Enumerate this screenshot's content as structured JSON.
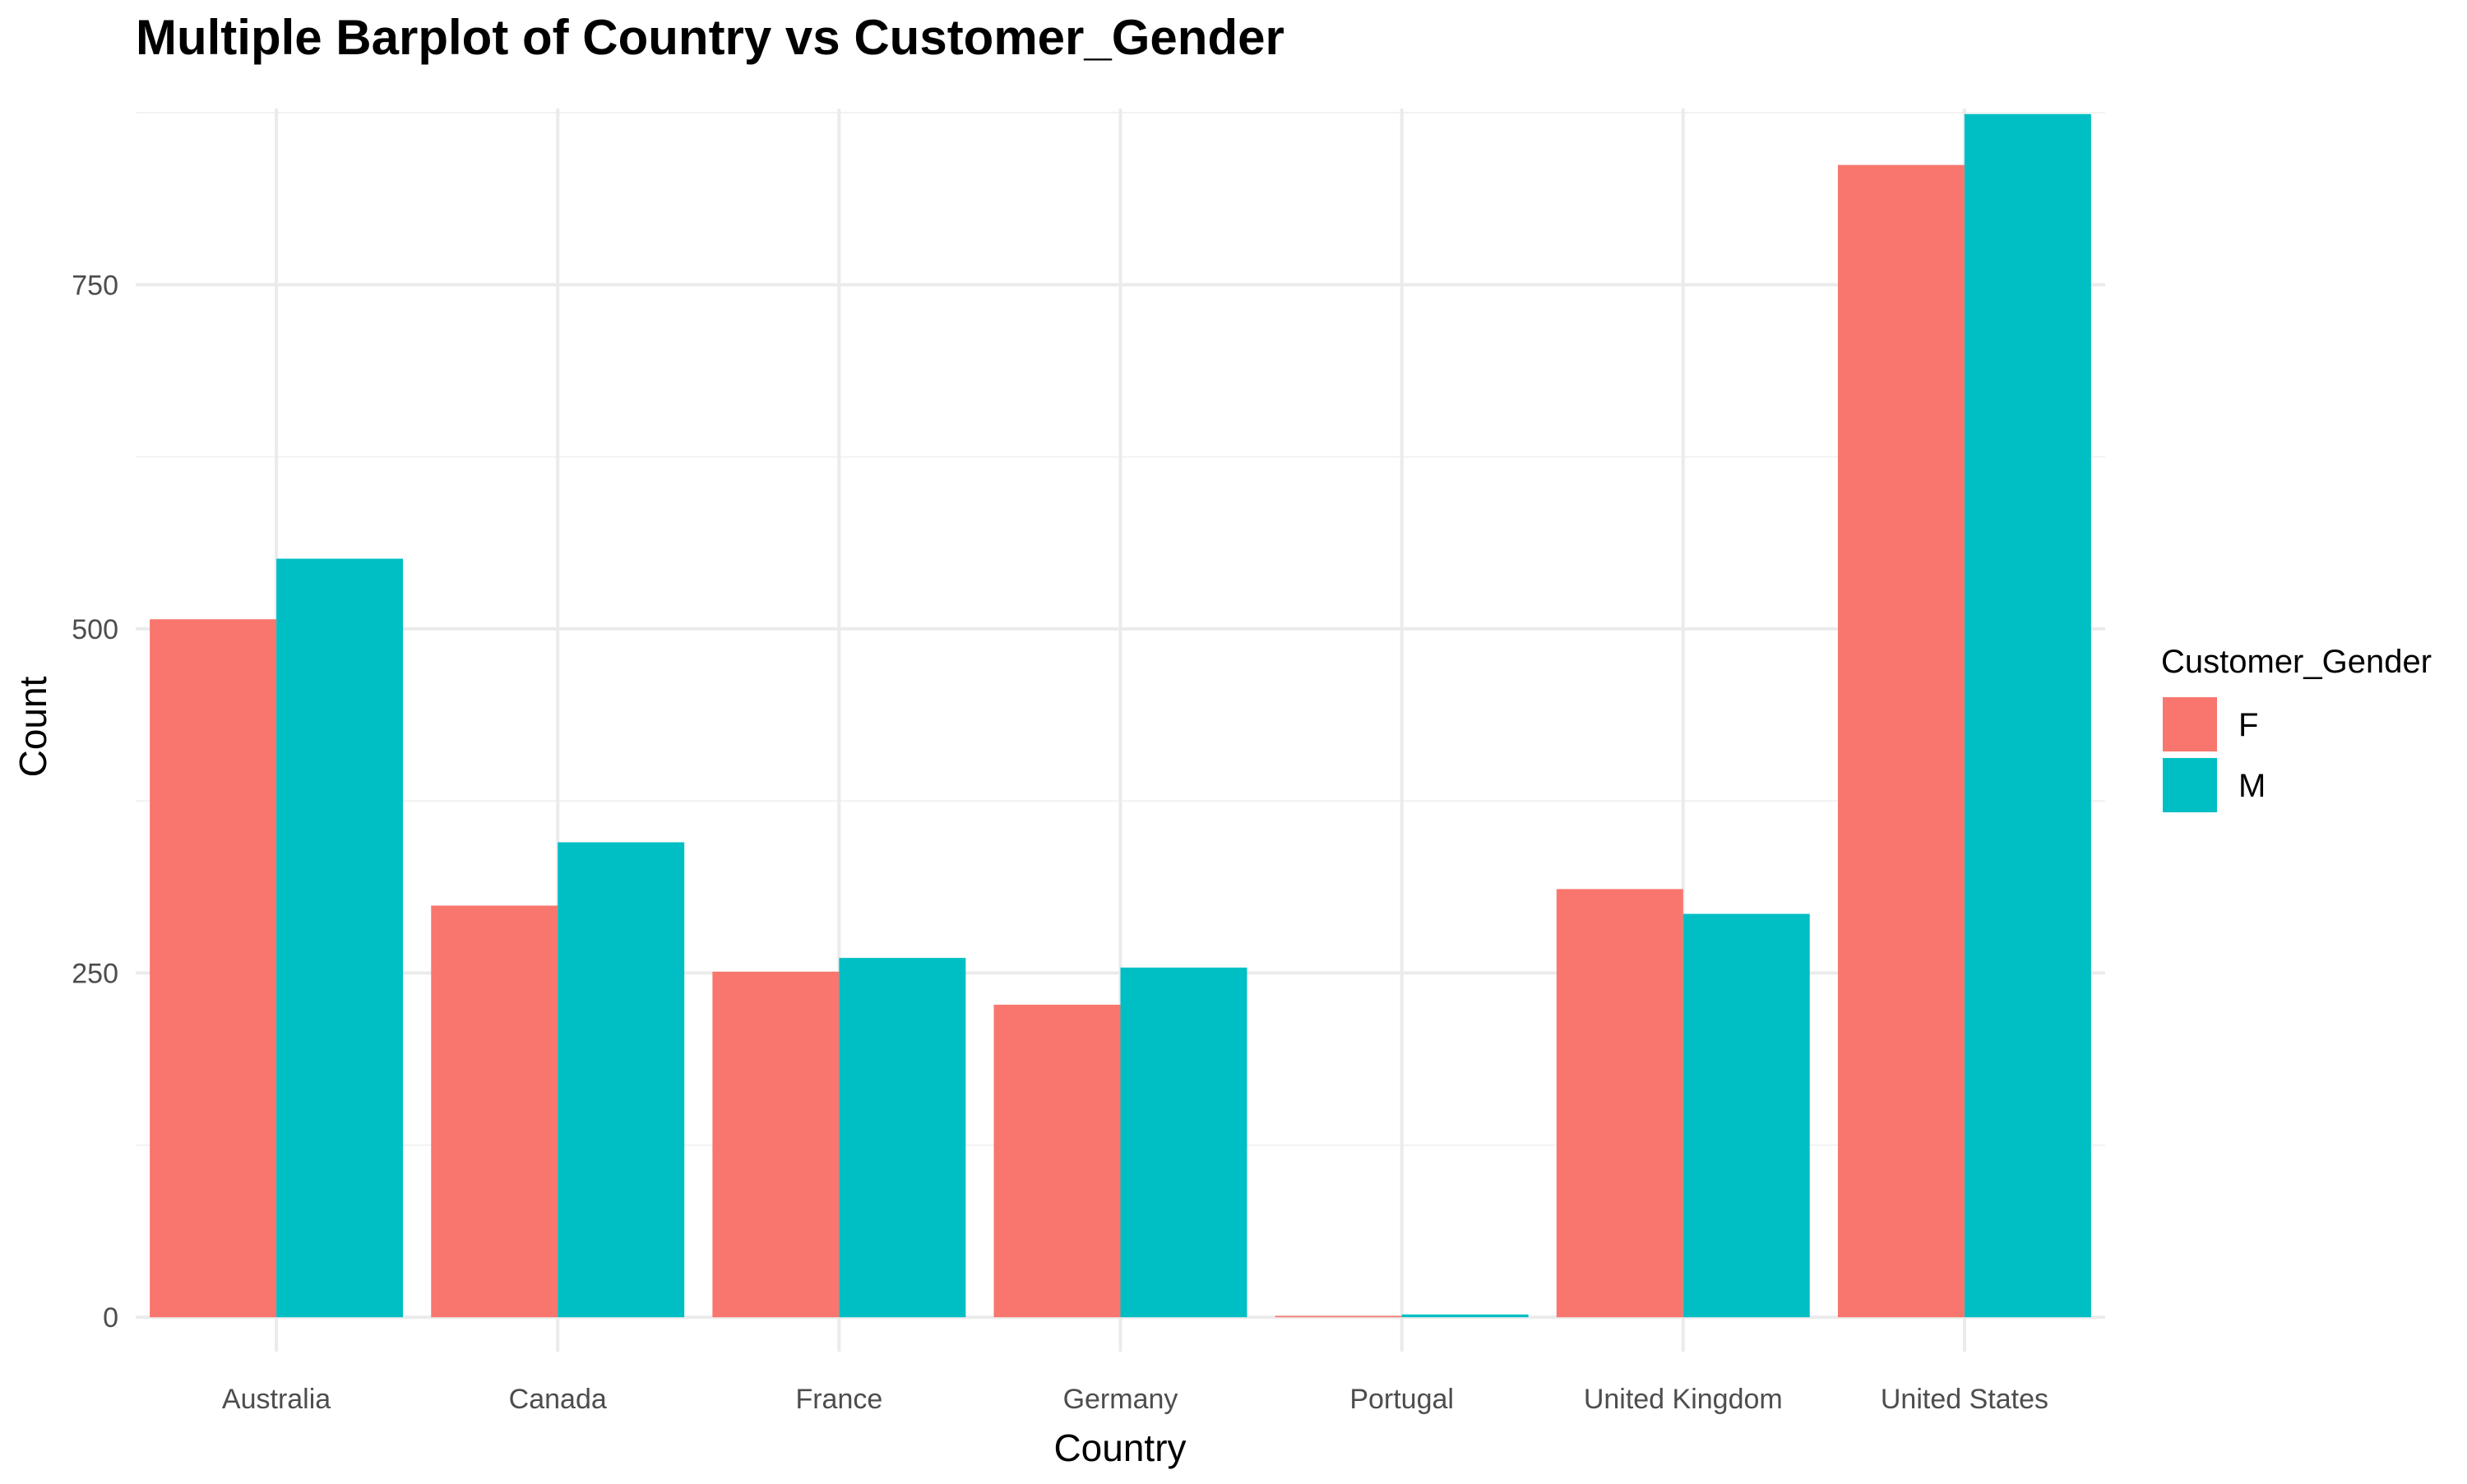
{
  "chart_data": {
    "type": "bar",
    "title": "Multiple Barplot of Country vs Customer_Gender",
    "xlabel": "Country",
    "ylabel": "Count",
    "categories": [
      "Australia",
      "Canada",
      "France",
      "Germany",
      "Portugal",
      "United Kingdom",
      "United States"
    ],
    "series": [
      {
        "name": "F",
        "color": "#F8766D",
        "values": [
          507,
          299,
          251,
          227,
          1,
          311,
          837
        ]
      },
      {
        "name": "M",
        "color": "#00BFC4",
        "values": [
          551,
          345,
          261,
          254,
          2,
          293,
          874
        ]
      }
    ],
    "yticks": [
      0,
      250,
      500,
      750
    ],
    "ylim": [
      -25,
      878
    ],
    "grid": true,
    "legend": {
      "title": "Customer_Gender",
      "position": "right"
    }
  }
}
